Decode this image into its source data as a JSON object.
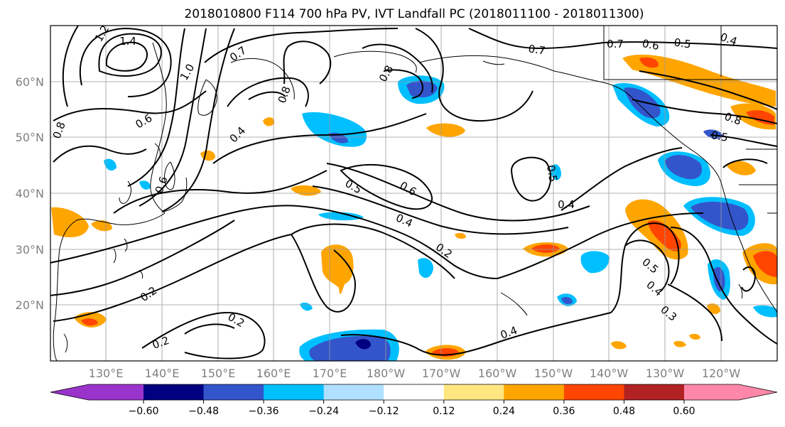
{
  "figure": {
    "title": "2018010800 F114 700 hPa PV, IVT Landfall PC (2018011100 - 2018011300)"
  },
  "map": {
    "lon_labels": [
      "130°E",
      "140°E",
      "150°E",
      "160°E",
      "170°E",
      "180°W",
      "170°W",
      "160°W",
      "150°W",
      "140°W",
      "130°W",
      "120°W"
    ],
    "lat_labels": [
      "60°N",
      "50°N",
      "40°N",
      "30°N",
      "20°N"
    ]
  },
  "colorbar": {
    "ticks": [
      "−0.60",
      "−0.48",
      "−0.36",
      "−0.24",
      "−0.12",
      "0.12",
      "0.24",
      "0.36",
      "0.48",
      "0.60"
    ],
    "under_color": "#9933cc",
    "colors": [
      "#9933cc",
      "#000080",
      "#3355cc",
      "#00bfff",
      "#b0e0ff",
      "#ffffff",
      "#ffe680",
      "#ffa500",
      "#ff4500",
      "#b22222",
      "#ff88aa"
    ],
    "over_color": "#ff88aa"
  },
  "contour_labels": [
    "1.2",
    "1.4",
    "0.7",
    "1.0",
    "0.8",
    "0.6",
    "0.4",
    "0.7",
    "0.7",
    "0.6",
    "0.5",
    "0.4",
    "0.8",
    "0.5",
    "0.8",
    "0.6",
    "0.5",
    "0.4",
    "0.4",
    "0.2",
    "0.5",
    "0.4",
    "0.3",
    "0.2",
    "0.2",
    "0.2",
    "0.4",
    "0.8",
    "0.5",
    "0.6"
  ],
  "colors": {
    "contour": "#000000",
    "grid": "#9a9a9a",
    "axis_label": "#808080",
    "negative_strong": "#000080",
    "negative_mid": "#3355cc",
    "negative_weak": "#00bfff",
    "negative_faint": "#b0e0ff",
    "positive_faint": "#ffe680",
    "positive_weak": "#ffa500",
    "positive_mid": "#ff4500",
    "positive_strong": "#b22222",
    "positive_over": "#ff88aa"
  }
}
